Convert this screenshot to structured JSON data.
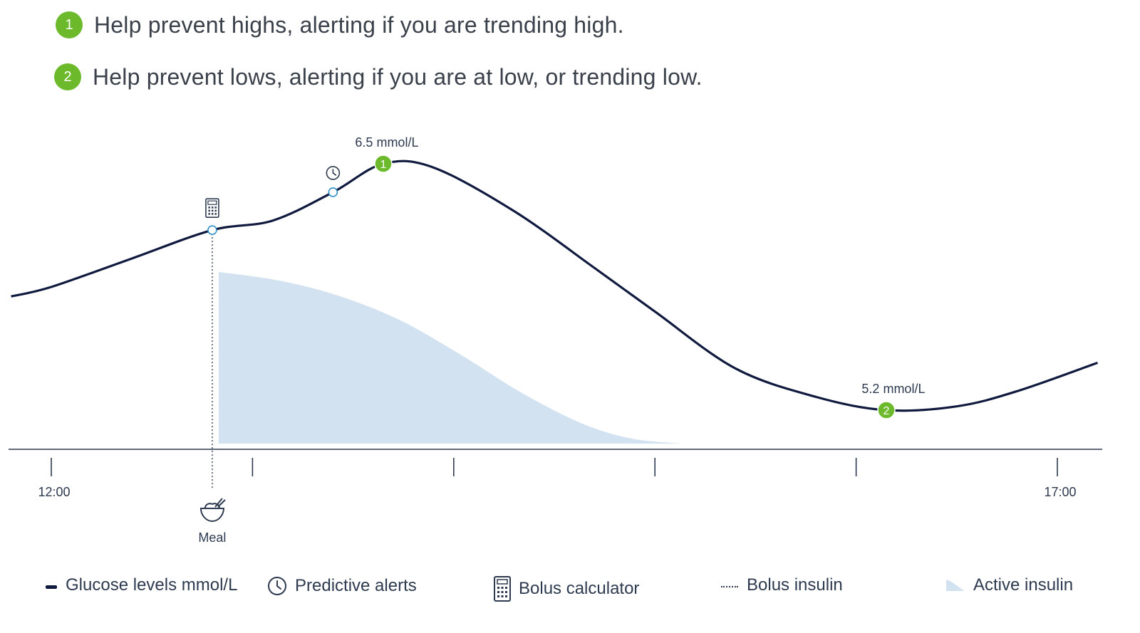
{
  "header": {
    "items": [
      {
        "number": "1",
        "text": "Help prevent highs, alerting if you are trending high."
      },
      {
        "number": "2",
        "text": "Help prevent lows, alerting if you are at low, or trending low."
      }
    ]
  },
  "chart_data": {
    "type": "line",
    "x_ticks": [
      "12:00",
      "",
      "",
      "",
      "",
      "17:00"
    ],
    "series": [
      {
        "name": "Glucose levels mmol/L",
        "type": "line",
        "x_hours": [
          11.8,
          12.0,
          12.4,
          12.8,
          13.1,
          13.4,
          13.65,
          13.9,
          14.3,
          14.7,
          15.0,
          15.4,
          15.8,
          16.15,
          16.5,
          16.8,
          17.2
        ],
        "y": [
          5.8,
          5.85,
          6.0,
          6.15,
          6.2,
          6.35,
          6.5,
          6.48,
          6.25,
          5.95,
          5.72,
          5.42,
          5.27,
          5.2,
          5.22,
          5.3,
          5.45
        ]
      },
      {
        "name": "Active insulin",
        "type": "area",
        "x_hours": [
          12.8,
          13.1,
          13.4,
          13.7,
          14.0,
          14.3,
          14.6,
          14.85,
          15.1
        ],
        "relative_level": [
          1.0,
          0.95,
          0.86,
          0.72,
          0.52,
          0.3,
          0.12,
          0.03,
          0.0
        ]
      }
    ],
    "annotations": [
      {
        "label": "6.5 mmol/L",
        "marker": "1",
        "x_hours": 13.65,
        "y": 6.5
      },
      {
        "label": "5.2 mmol/L",
        "marker": "2",
        "x_hours": 16.15,
        "y": 5.2
      }
    ],
    "events": [
      {
        "type": "bolus-calculator",
        "x_hours": 12.8,
        "y": 6.15
      },
      {
        "type": "predictive-alert",
        "x_hours": 13.4,
        "y": 6.35
      }
    ],
    "meal": {
      "label": "Meal",
      "x_hours": 12.8
    },
    "xlim_hours": [
      11.8,
      17.3
    ],
    "ylim": [
      4.9,
      6.8
    ],
    "colors": {
      "glucose": "#101a3e",
      "insulin": "#d3e2f0",
      "marker": "#6cba2c",
      "axis": "#2d3a4f",
      "event_ring": "#2f8fc7"
    }
  },
  "legend": {
    "glucose": "Glucose levels mmol/L",
    "alerts": "Predictive alerts",
    "calculator": "Bolus calculator",
    "bolus": "Bolus insulin",
    "active": "Active insulin"
  }
}
